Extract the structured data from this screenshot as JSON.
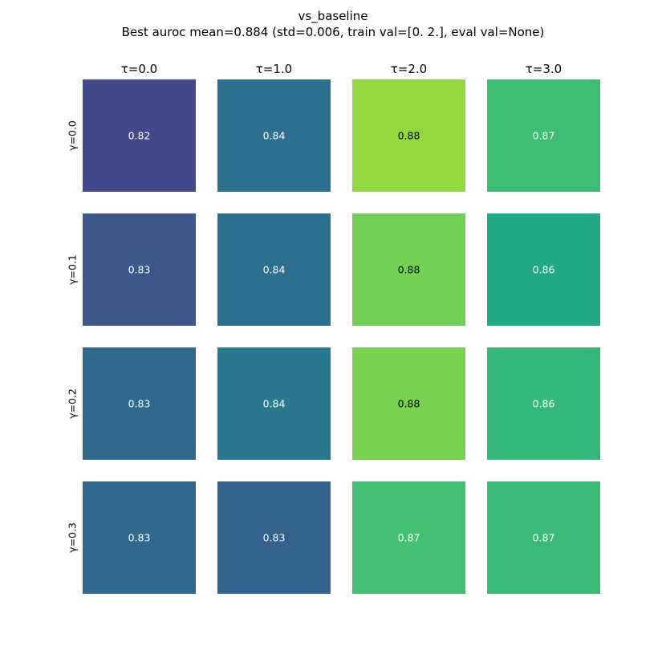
{
  "chart_data": {
    "type": "heatmap",
    "title": "vs_baseline",
    "subtitle": "Best auroc mean=0.884 (std=0.006, train val=[0. 2.], eval val=None)",
    "col_labels": [
      "τ=0.0",
      "τ=1.0",
      "τ=2.0",
      "τ=3.0"
    ],
    "row_labels": [
      "γ=0.0",
      "γ=0.1",
      "γ=0.2",
      "γ=0.3"
    ],
    "values": [
      [
        0.82,
        0.84,
        0.88,
        0.87
      ],
      [
        0.83,
        0.84,
        0.88,
        0.86
      ],
      [
        0.83,
        0.84,
        0.88,
        0.86
      ],
      [
        0.83,
        0.83,
        0.87,
        0.87
      ]
    ],
    "cell_labels": [
      [
        "0.82",
        "0.84",
        "0.88",
        "0.87"
      ],
      [
        "0.83",
        "0.84",
        "0.88",
        "0.86"
      ],
      [
        "0.83",
        "0.84",
        "0.88",
        "0.86"
      ],
      [
        "0.83",
        "0.83",
        "0.87",
        "0.87"
      ]
    ],
    "cell_colors": [
      [
        "#43488a",
        "#2e6f8e",
        "#93d741",
        "#3dbc74"
      ],
      [
        "#3c588b",
        "#2e6f8e",
        "#73d055",
        "#22a884"
      ],
      [
        "#31688e",
        "#2a788e",
        "#7ad151",
        "#35b779"
      ],
      [
        "#31688e",
        "#34618d",
        "#43bf71",
        "#3aba76"
      ]
    ],
    "text_colors": [
      [
        "#ffffff",
        "#ffffff",
        "#000000",
        "#ffffff"
      ],
      [
        "#ffffff",
        "#ffffff",
        "#000000",
        "#ffffff"
      ],
      [
        "#ffffff",
        "#ffffff",
        "#000000",
        "#ffffff"
      ],
      [
        "#ffffff",
        "#ffffff",
        "#ffffff",
        "#ffffff"
      ]
    ],
    "colormap": "viridis",
    "grid": false
  }
}
